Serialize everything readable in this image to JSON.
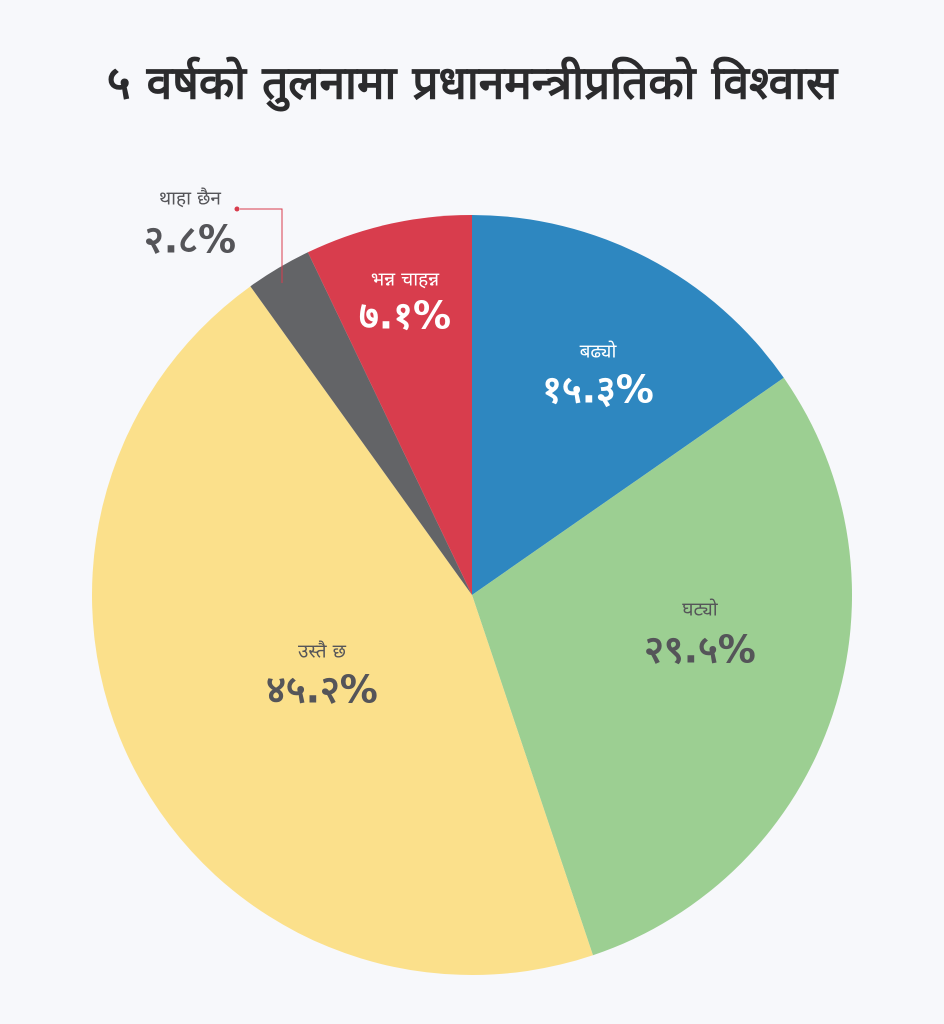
{
  "chart_data": {
    "type": "pie",
    "title": "५ वर्षको तुलनामा प्रधानमन्त्रीप्रतिको विश्वास",
    "categories": [
      "बढ्यो",
      "घट्यो",
      "उस्तै छ",
      "थाहा छैन",
      "भन्न चाहन्न"
    ],
    "values": [
      15.3,
      29.5,
      45.2,
      2.8,
      7.1
    ],
    "value_labels": [
      "१५.३%",
      "२९.५%",
      "४५.२%",
      "२.८%",
      "७.१%"
    ],
    "colors": [
      "#2e87c0",
      "#9ccf92",
      "#fbe08b",
      "#636467",
      "#d83d4d"
    ]
  }
}
